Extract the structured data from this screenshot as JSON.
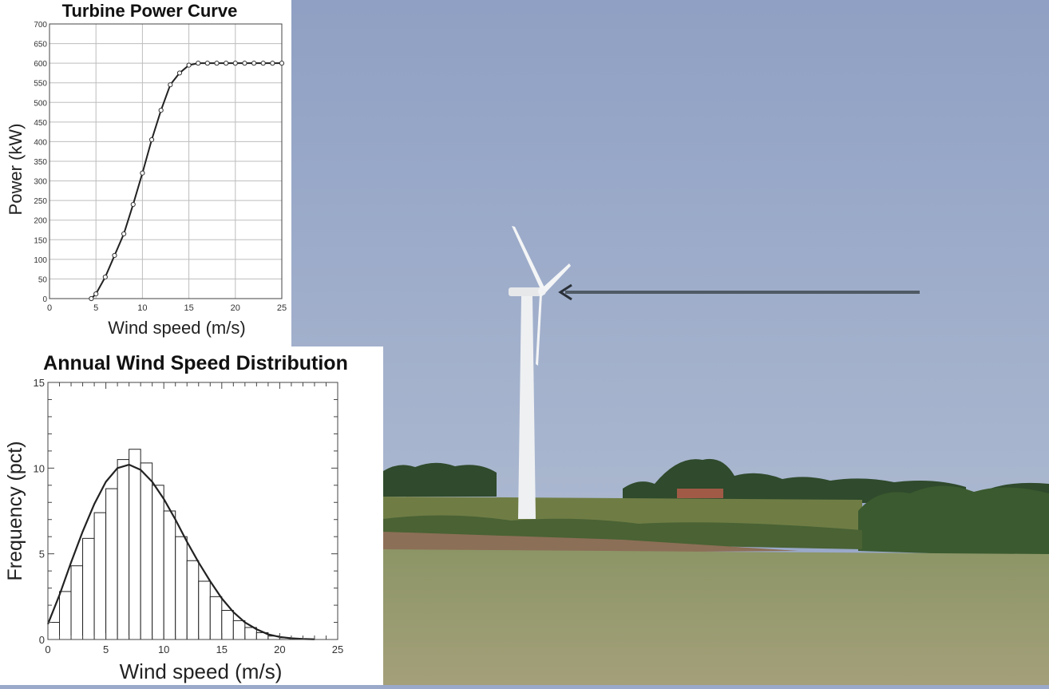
{
  "chart_data": [
    {
      "type": "line",
      "title": "Turbine Power Curve",
      "xlabel": "Wind speed (m/s)",
      "ylabel": "Power (kW)",
      "xlim": [
        0,
        25
      ],
      "ylim": [
        0,
        700
      ],
      "xticks": [
        0,
        5,
        10,
        15,
        20,
        25
      ],
      "yticks": [
        0,
        50,
        100,
        150,
        200,
        250,
        300,
        350,
        400,
        450,
        500,
        550,
        600,
        650,
        700
      ],
      "grid": true,
      "series": [
        {
          "x": [
            4.5,
            5,
            6,
            7,
            8,
            9,
            10,
            11,
            12,
            13,
            14,
            15,
            16,
            17,
            18,
            19,
            20,
            21,
            22,
            23,
            24,
            25
          ],
          "y": [
            0,
            12,
            55,
            110,
            165,
            240,
            320,
            405,
            480,
            545,
            575,
            595,
            600,
            600,
            600,
            600,
            600,
            600,
            600,
            600,
            600,
            600
          ]
        }
      ]
    },
    {
      "type": "bar",
      "title": "Annual Wind Speed Distribution",
      "xlabel": "Wind speed (m/s)",
      "ylabel": "Frequency (pct)",
      "xlim": [
        0,
        25
      ],
      "ylim": [
        0,
        15
      ],
      "xticks": [
        0,
        5,
        10,
        15,
        20,
        25
      ],
      "yticks": [
        0,
        5,
        10,
        15
      ],
      "grid": false,
      "bins": [
        0,
        1,
        2,
        3,
        4,
        5,
        6,
        7,
        8,
        9,
        10,
        11,
        12,
        13,
        14,
        15,
        16,
        17,
        18,
        19,
        20,
        21,
        22
      ],
      "values": [
        1.0,
        2.8,
        4.3,
        5.9,
        7.4,
        8.8,
        10.5,
        11.1,
        10.3,
        9.0,
        7.5,
        6.0,
        4.6,
        3.4,
        2.5,
        1.7,
        1.1,
        0.7,
        0.4,
        0.2,
        0.1,
        0.05,
        0.02
      ],
      "fit": {
        "x": [
          0,
          1,
          2,
          3,
          4,
          5,
          6,
          7,
          8,
          9,
          10,
          11,
          12,
          13,
          14,
          15,
          16,
          17,
          18,
          19,
          20,
          21,
          22,
          23
        ],
        "y": [
          0.9,
          2.6,
          4.5,
          6.3,
          7.9,
          9.2,
          10.0,
          10.2,
          9.9,
          9.2,
          8.2,
          7.0,
          5.7,
          4.5,
          3.4,
          2.4,
          1.6,
          1.0,
          0.6,
          0.3,
          0.15,
          0.07,
          0.03,
          0.01
        ]
      }
    }
  ],
  "colors": {
    "sky": "#9aa9c9",
    "grass": "#8a9468",
    "line": "#222222",
    "arrow": "#505a66"
  },
  "scene": {
    "content": "wind turbine in field",
    "arrow": "points to turbine hub"
  }
}
